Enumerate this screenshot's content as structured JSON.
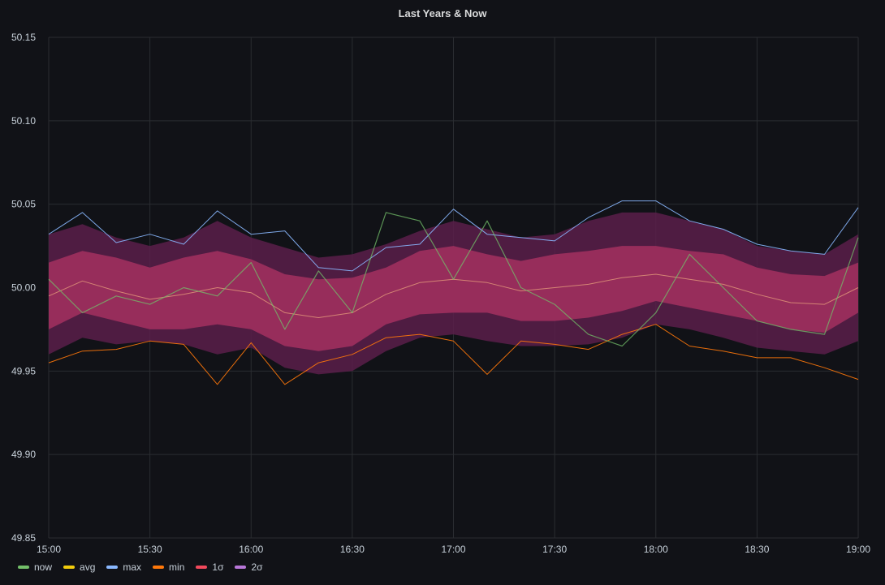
{
  "panel": {
    "title": "Last Years & Now"
  },
  "colors": {
    "background": "#111217",
    "grid": "#2a2c31",
    "now": "#73bf69",
    "avg": "#f2cc0c",
    "max": "#8ab8ff",
    "min": "#ff780a",
    "sigma1": "#f2495c",
    "sigma2": "#b877d9",
    "band1_fill": "#a3305f",
    "band2_fill": "#5a1f4a"
  },
  "legend": [
    {
      "label": "now",
      "color": "#73bf69"
    },
    {
      "label": "avg",
      "color": "#f2cc0c"
    },
    {
      "label": "max",
      "color": "#8ab8ff"
    },
    {
      "label": "min",
      "color": "#ff780a"
    },
    {
      "label": "1σ",
      "color": "#f2495c"
    },
    {
      "label": "2σ",
      "color": "#b877d9"
    }
  ],
  "chart_data": {
    "type": "line",
    "title": "Last Years & Now",
    "xlabel": "",
    "ylabel": "",
    "x_ticks": [
      "15:00",
      "15:30",
      "16:00",
      "16:30",
      "17:00",
      "17:30",
      "18:00",
      "18:30",
      "19:00"
    ],
    "y_ticks": [
      "50.15",
      "50.10",
      "50.05",
      "50.00",
      "49.95",
      "49.90",
      "49.85"
    ],
    "ylim": [
      49.85,
      50.15
    ],
    "xlim_minutes": [
      0,
      240
    ],
    "grid": true,
    "legend_position": "bottom-left",
    "x_minutes": [
      0,
      10,
      20,
      30,
      40,
      50,
      60,
      70,
      80,
      90,
      100,
      110,
      120,
      130,
      140,
      150,
      160,
      170,
      180,
      190,
      200,
      210,
      220,
      230,
      240
    ],
    "series": [
      {
        "name": "max",
        "values": [
          50.032,
          50.045,
          50.027,
          50.032,
          50.026,
          50.046,
          50.032,
          50.034,
          50.012,
          50.01,
          50.024,
          50.026,
          50.047,
          50.032,
          50.03,
          50.028,
          50.042,
          50.052,
          50.052,
          50.04,
          50.035,
          50.026,
          50.022,
          50.02,
          50.048
        ]
      },
      {
        "name": "min",
        "values": [
          49.955,
          49.962,
          49.963,
          49.968,
          49.966,
          49.942,
          49.967,
          49.942,
          49.955,
          49.96,
          49.97,
          49.972,
          49.968,
          49.948,
          49.968,
          49.966,
          49.963,
          49.972,
          49.978,
          49.965,
          49.962,
          49.958,
          49.958,
          49.952,
          49.945
        ]
      },
      {
        "name": "avg",
        "values": [
          49.995,
          50.004,
          49.998,
          49.993,
          49.996,
          50.0,
          49.997,
          49.985,
          49.982,
          49.985,
          49.996,
          50.003,
          50.005,
          50.003,
          49.998,
          50.0,
          50.002,
          50.006,
          50.008,
          50.005,
          50.002,
          49.996,
          49.991,
          49.99,
          50.0
        ]
      },
      {
        "name": "1σ upper",
        "values": [
          50.015,
          50.022,
          50.018,
          50.012,
          50.018,
          50.022,
          50.017,
          50.008,
          50.005,
          50.006,
          50.012,
          50.022,
          50.025,
          50.02,
          50.016,
          50.02,
          50.022,
          50.025,
          50.025,
          50.022,
          50.02,
          50.012,
          50.008,
          50.007,
          50.015
        ]
      },
      {
        "name": "1σ lower",
        "values": [
          49.975,
          49.985,
          49.98,
          49.975,
          49.975,
          49.978,
          49.975,
          49.965,
          49.962,
          49.965,
          49.978,
          49.984,
          49.985,
          49.985,
          49.98,
          49.98,
          49.982,
          49.986,
          49.992,
          49.988,
          49.984,
          49.98,
          49.975,
          49.973,
          49.985
        ]
      },
      {
        "name": "2σ upper",
        "values": [
          50.032,
          50.038,
          50.03,
          50.025,
          50.03,
          50.04,
          50.03,
          50.024,
          50.018,
          50.02,
          50.026,
          50.034,
          50.04,
          50.035,
          50.03,
          50.032,
          50.04,
          50.045,
          50.045,
          50.04,
          50.035,
          50.025,
          50.022,
          50.02,
          50.032
        ]
      },
      {
        "name": "2σ lower",
        "values": [
          49.96,
          49.97,
          49.966,
          49.968,
          49.966,
          49.96,
          49.964,
          49.952,
          49.948,
          49.95,
          49.962,
          49.97,
          49.972,
          49.968,
          49.965,
          49.965,
          49.966,
          49.97,
          49.978,
          49.975,
          49.97,
          49.964,
          49.962,
          49.96,
          49.968
        ]
      },
      {
        "name": "now",
        "values": [
          50.005,
          49.985,
          49.995,
          49.99,
          50.0,
          49.995,
          50.015,
          49.975,
          50.01,
          49.985,
          50.045,
          50.04,
          50.005,
          50.04,
          50.0,
          49.99,
          49.972,
          49.965,
          49.985,
          50.02,
          50.0,
          49.98,
          49.975,
          49.972,
          50.03
        ]
      }
    ]
  }
}
